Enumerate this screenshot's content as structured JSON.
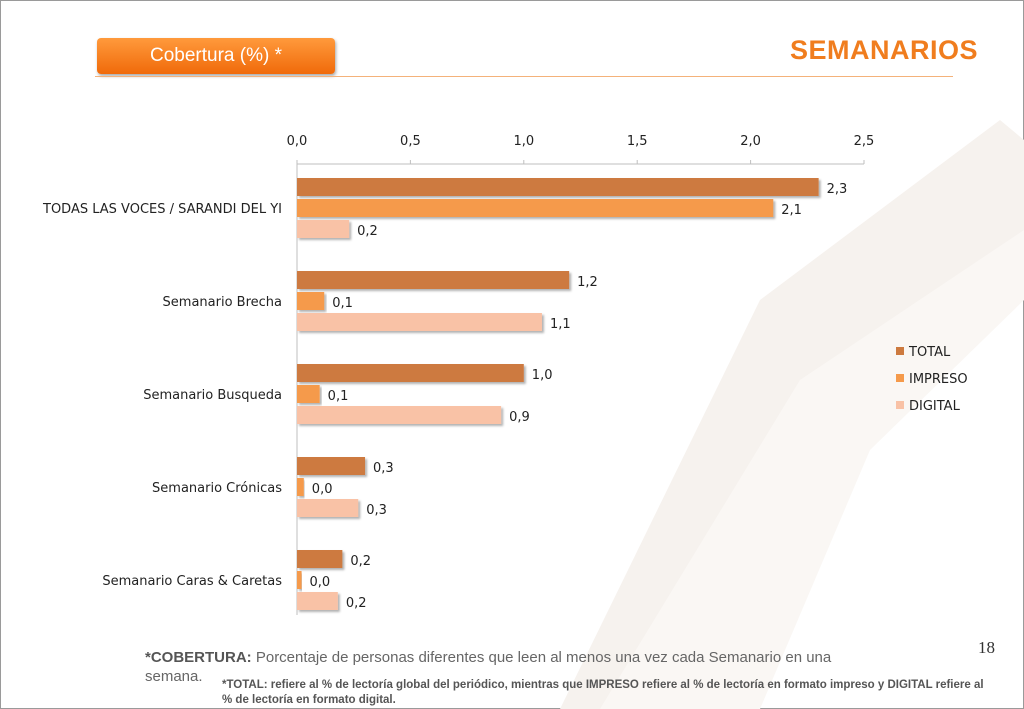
{
  "header": {
    "coverage_label": "Cobertura (%) *",
    "title": "SEMANARIOS"
  },
  "page_number": "18",
  "footnotes": {
    "cobertura_term": "*COBERTURA:",
    "cobertura_text": "Porcentaje de personas diferentes que leen al menos una vez cada Semanario en una semana.",
    "total_note": "*TOTAL: refiere al % de lectoría global del periódico, mientras que IMPRESO refiere al % de lectoría en formato impreso y DIGITAL refiere al % de lectoría en formato digital."
  },
  "colors": {
    "TOTAL": "#cd7a3f",
    "IMPRESO": "#f59a4b",
    "DIGITAL": "#f9c2a6",
    "accent": "#f07d1e"
  },
  "chart_data": {
    "type": "bar",
    "orientation": "horizontal",
    "categories": [
      "TODAS LAS VOCES / SARANDI DEL YI",
      "Semanario Brecha",
      "Semanario Busqueda",
      "Semanario Crónicas",
      "Semanario Caras & Caretas"
    ],
    "series": [
      {
        "name": "TOTAL",
        "values": [
          2.3,
          1.2,
          1.0,
          0.3,
          0.2
        ],
        "labels": [
          "2,3",
          "1,2",
          "1,0",
          "0,3",
          "0,2"
        ]
      },
      {
        "name": "IMPRESO",
        "values": [
          2.1,
          0.12,
          0.1,
          0.03,
          0.02
        ],
        "labels": [
          "2,1",
          "0,1",
          "0,1",
          "0,0",
          "0,0"
        ]
      },
      {
        "name": "DIGITAL",
        "values": [
          0.23,
          1.08,
          0.9,
          0.27,
          0.18
        ],
        "labels": [
          "0,2",
          "1,1",
          "0,9",
          "0,3",
          "0,2"
        ]
      }
    ],
    "xlim": [
      0,
      2.5
    ],
    "xticks": [
      "0,0",
      "0,5",
      "1,0",
      "1,5",
      "2,0",
      "2,5"
    ],
    "axis_position": "top",
    "legend_position": "right",
    "grid": false
  }
}
